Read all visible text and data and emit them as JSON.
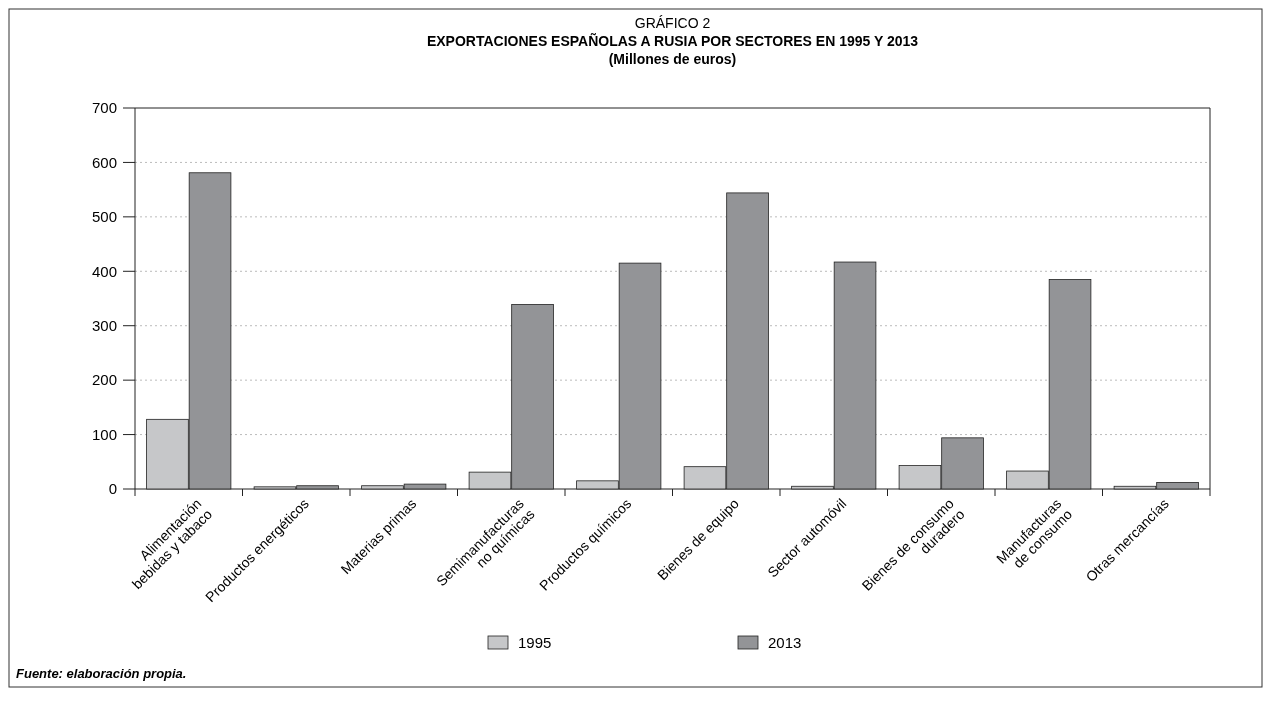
{
  "chart_data": {
    "type": "bar",
    "title": "GRÁFICO 2",
    "subtitle": "EXPORTACIONES ESPAÑOLAS A RUSIA POR SECTORES EN 1995 Y 2013\n(Millones de euros)",
    "categories": [
      "Alimentación\nbebidas y tabaco",
      "Productos energéticos",
      "Materias primas",
      "Semimanufacturas\nno químicas",
      "Productos químicos",
      "Bienes de equipo",
      "Sector automóvil",
      "Bienes de consumo\nduradero",
      "Manufacturas\nde consumo",
      "Otras mercancías"
    ],
    "series": [
      {
        "name": "1995",
        "color": "#c6c7c9",
        "values": [
          128,
          4,
          6,
          31,
          15,
          41,
          5,
          43,
          33,
          5
        ]
      },
      {
        "name": "2013",
        "color": "#939497",
        "values": [
          581,
          6,
          9,
          339,
          415,
          544,
          417,
          94,
          385,
          12
        ]
      }
    ],
    "ylim": [
      0,
      700
    ],
    "yticks": [
      0,
      100,
      200,
      300,
      400,
      500,
      600,
      700
    ],
    "grid": "y",
    "legend": "bottom",
    "annotations": [
      "Fuente: elaboración propia."
    ]
  }
}
